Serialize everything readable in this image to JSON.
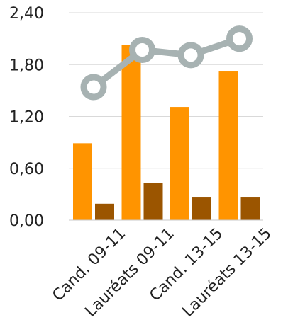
{
  "chart_data": {
    "type": "bar",
    "categories": [
      "Cand. 09-11",
      "Lauréats 09-11",
      "Cand. 13-15",
      "Lauréats 13-15"
    ],
    "series": [
      {
        "type": "bar",
        "color": "#ff9400",
        "values": [
          0.89,
          2.03,
          1.31,
          1.72
        ]
      },
      {
        "type": "bar",
        "color": "#9b5500",
        "values": [
          0.19,
          0.43,
          0.27,
          0.27
        ]
      },
      {
        "type": "line",
        "color": "#a7b2b2",
        "values": [
          1.54,
          1.97,
          1.91,
          2.1
        ]
      }
    ],
    "y_ticks": [
      "0,00",
      "0,60",
      "1,20",
      "1,80",
      "2,40"
    ],
    "ylim": [
      0,
      2.4
    ],
    "grid": true,
    "legend": "none",
    "title": "",
    "xlabel": "",
    "ylabel": ""
  }
}
